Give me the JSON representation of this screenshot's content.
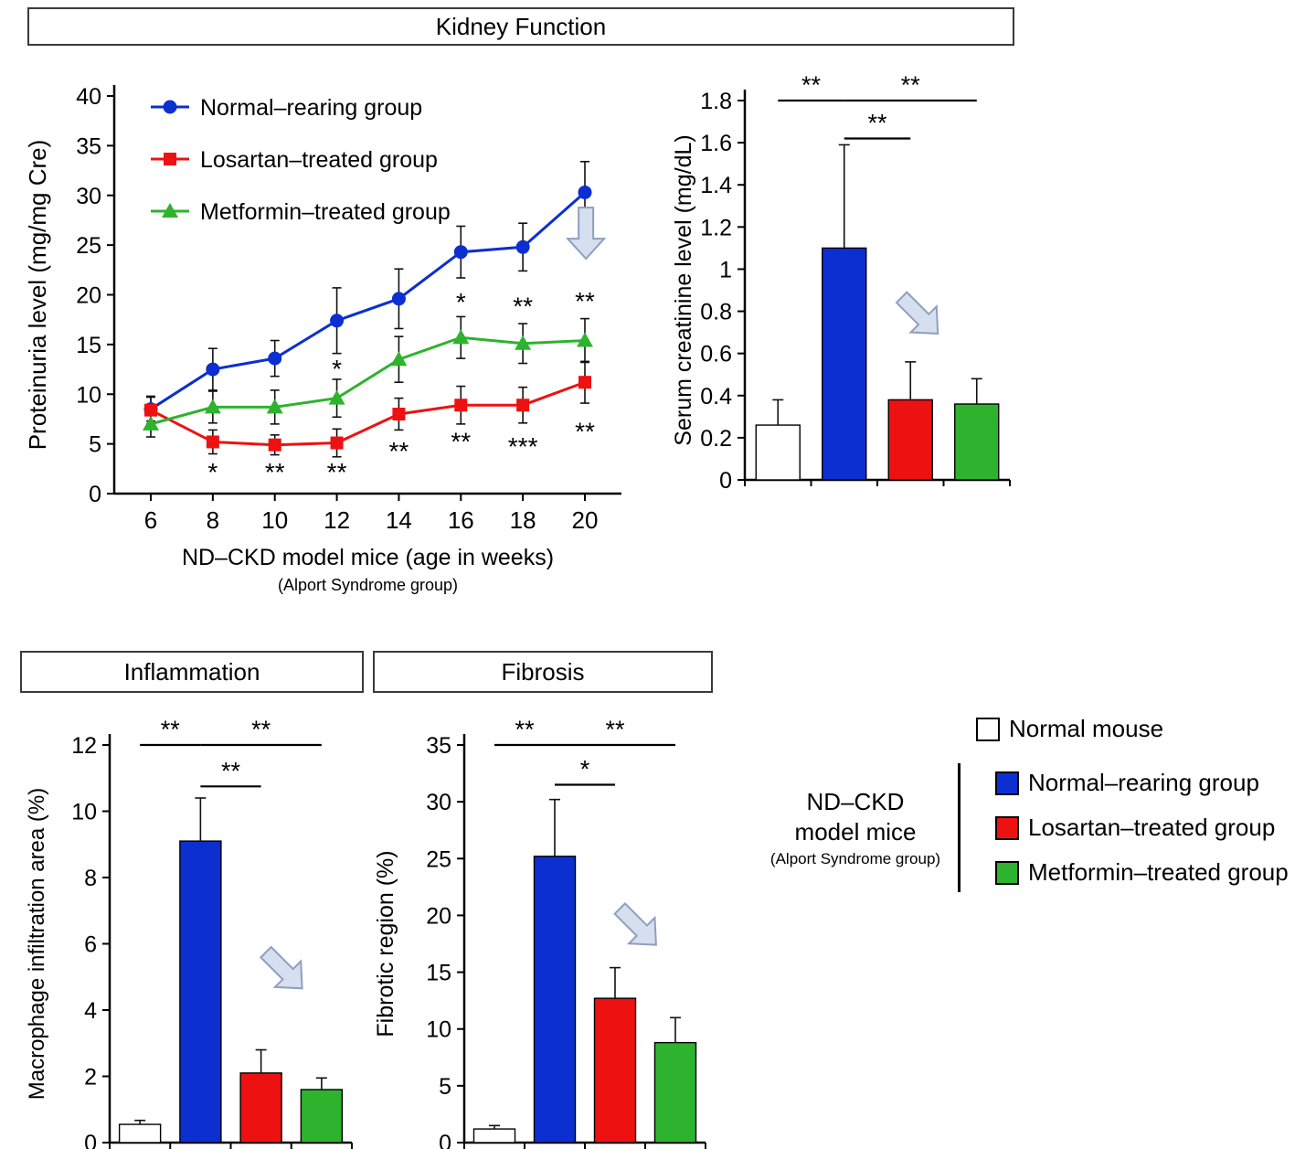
{
  "sections": {
    "kidney_function": "Kidney Function",
    "inflammation": "Inflammation",
    "fibrosis": "Fibrosis"
  },
  "colors": {
    "blue": "#0b2fd0",
    "red": "#ee1111",
    "green": "#2db32d",
    "white": "#ffffff",
    "arrow_fill": "#d6dff0",
    "arrow_stroke": "#8f9fbd"
  },
  "legend": {
    "normal_mouse_label": "Normal mouse",
    "group_label": "ND–CKD model mice",
    "group_sublabel": "(Alport Syndrome group)",
    "items": [
      {
        "label": "Normal–rearing group",
        "color": "blue"
      },
      {
        "label": "Losartan–treated group",
        "color": "red"
      },
      {
        "label": "Metformin–treated group",
        "color": "green"
      }
    ]
  },
  "chart_data": [
    {
      "id": "proteinuria",
      "type": "line",
      "ylabel": "Proteinuria level (mg/mg Cre)",
      "xlabel": "ND–CKD model mice (age in weeks)",
      "xlabel_sub": "(Alport Syndrome group)",
      "x": [
        6,
        8,
        10,
        12,
        14,
        16,
        18,
        20
      ],
      "ylim": [
        0,
        40
      ],
      "ytick_step": 5,
      "series": [
        {
          "name": "Normal–rearing group",
          "color": "blue",
          "marker": "circle",
          "values": [
            8.5,
            12.5,
            13.6,
            17.4,
            19.6,
            24.3,
            24.8,
            30.3
          ],
          "errors": [
            1.2,
            2.1,
            1.8,
            3.3,
            3.0,
            2.6,
            2.4,
            3.1
          ]
        },
        {
          "name": "Losartan–treated group",
          "color": "red",
          "marker": "square",
          "values": [
            8.4,
            5.2,
            4.9,
            5.1,
            8.0,
            8.9,
            8.9,
            11.2
          ],
          "errors": [
            1.4,
            1.2,
            1.0,
            1.4,
            1.6,
            1.9,
            1.8,
            2.1
          ]
        },
        {
          "name": "Metformin–treated group",
          "color": "green",
          "marker": "triangle",
          "values": [
            7.0,
            8.7,
            8.7,
            9.6,
            13.5,
            15.7,
            15.1,
            15.4
          ],
          "errors": [
            1.3,
            1.6,
            1.7,
            1.9,
            2.3,
            2.1,
            2.0,
            2.2
          ]
        }
      ],
      "annotations": [
        {
          "x": 8,
          "y": 2.2,
          "text": "*"
        },
        {
          "x": 10,
          "y": 2.2,
          "text": "**"
        },
        {
          "x": 12,
          "y": 2.2,
          "text": "**"
        },
        {
          "x": 14,
          "y": 4.3,
          "text": "**"
        },
        {
          "x": 16,
          "y": 5.3,
          "text": "**"
        },
        {
          "x": 18,
          "y": 4.8,
          "text": "***"
        },
        {
          "x": 20,
          "y": 6.3,
          "text": "**"
        },
        {
          "x": 12,
          "y": 12.6,
          "text": "*"
        },
        {
          "x": 16,
          "y": 19.3,
          "text": "*"
        },
        {
          "x": 18,
          "y": 18.9,
          "text": "**"
        },
        {
          "x": 20,
          "y": 19.4,
          "text": "**"
        }
      ],
      "arrow": {
        "x_frac": 0.93,
        "y_value": 26.2,
        "rotate": 0
      }
    },
    {
      "id": "serum_creatinine",
      "type": "bar",
      "ylabel": "Serum creatinine level (mg/dL)",
      "categories": [
        "Normal mouse",
        "Normal–rearing group",
        "Losartan–treated group",
        "Metformin–treated group"
      ],
      "values": [
        0.26,
        1.1,
        0.38,
        0.36
      ],
      "errors": [
        0.12,
        0.49,
        0.18,
        0.12
      ],
      "bar_colors": [
        "white",
        "blue",
        "red",
        "green"
      ],
      "ylim": [
        0,
        1.8
      ],
      "ytick_step": 0.2,
      "sig_brackets": [
        {
          "from": 0,
          "to": 1,
          "y": 1.8,
          "label": "**"
        },
        {
          "from": 1,
          "to": 3,
          "y": 1.8,
          "label": "**"
        },
        {
          "from": 1,
          "to": 2,
          "y": 1.62,
          "label": "**"
        }
      ],
      "arrow": {
        "x_frac": 0.66,
        "y_value": 0.78,
        "rotate": -45
      }
    },
    {
      "id": "inflammation",
      "type": "bar",
      "ylabel": "Macrophage infiltration area (%)",
      "categories": [
        "Normal mouse",
        "Normal–rearing group",
        "Losartan–treated group",
        "Metformin–treated group"
      ],
      "values": [
        0.55,
        9.1,
        2.1,
        1.6
      ],
      "errors": [
        0.12,
        1.3,
        0.7,
        0.35
      ],
      "bar_colors": [
        "white",
        "blue",
        "red",
        "green"
      ],
      "ylim": [
        0,
        12
      ],
      "ytick_step": 2,
      "sig_brackets": [
        {
          "from": 0,
          "to": 1,
          "y": 12,
          "label": "**"
        },
        {
          "from": 1,
          "to": 3,
          "y": 12,
          "label": "**"
        },
        {
          "from": 1,
          "to": 2,
          "y": 10.75,
          "label": "**"
        }
      ],
      "arrow": {
        "x_frac": 0.72,
        "y_value": 5.2,
        "rotate": -45
      }
    },
    {
      "id": "fibrosis",
      "type": "bar",
      "ylabel": "Fibrotic region (%)",
      "categories": [
        "Normal mouse",
        "Normal–rearing group",
        "Losartan–treated group",
        "Metformin–treated group"
      ],
      "values": [
        1.2,
        25.2,
        12.7,
        8.8
      ],
      "errors": [
        0.3,
        5.0,
        2.7,
        2.2
      ],
      "bar_colors": [
        "white",
        "blue",
        "red",
        "green"
      ],
      "ylim": [
        0,
        35
      ],
      "ytick_step": 5,
      "sig_brackets": [
        {
          "from": 0,
          "to": 1,
          "y": 35,
          "label": "**"
        },
        {
          "from": 1,
          "to": 3,
          "y": 35,
          "label": "**"
        },
        {
          "from": 1,
          "to": 2,
          "y": 31.5,
          "label": "*"
        }
      ],
      "arrow": {
        "x_frac": 0.72,
        "y_value": 19,
        "rotate": -45
      }
    }
  ]
}
